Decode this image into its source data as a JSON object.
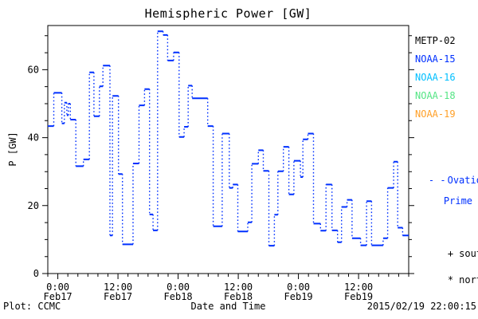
{
  "header": {
    "title": "Hemispheric Power [GW]"
  },
  "y_axis": {
    "label": "P [GW]"
  },
  "footer": {
    "plot_credit": "Plot: CCMC",
    "xaxis_title": "Date and Time",
    "timestamp": "2015/02/19 22:00:15"
  },
  "legend": {
    "satellites": [
      {
        "label": "METP-02",
        "color": "#000000"
      },
      {
        "label": "NOAA-15",
        "color": "#0030ff"
      },
      {
        "label": "NOAA-16",
        "color": "#00bfff"
      },
      {
        "label": "NOAA-18",
        "color": "#55e585"
      },
      {
        "label": "NOAA-19",
        "color": "#ffa028"
      }
    ],
    "model": {
      "marker": "- -",
      "label_line1": "Ovation",
      "label_line2": "Prime HPI",
      "color": "#0030ff"
    },
    "hemisphere_markers": [
      {
        "symbol": "+",
        "label": "south"
      },
      {
        "symbol": "*",
        "label": "north"
      }
    ]
  },
  "chart_data": {
    "type": "line",
    "style": "step",
    "title": "Hemispheric Power [GW]",
    "xlabel": "Date and Time",
    "ylabel": "P [GW]",
    "ylim": [
      0,
      73
    ],
    "y_major_ticks": [
      0,
      20,
      40,
      60
    ],
    "y_minor_step": 5,
    "x_range_hours": 72,
    "x_start": "Feb16 22:00",
    "x_end": "Feb19 22:00",
    "x_minor_step_hours": 2,
    "grid": "off",
    "tick_style": "outward",
    "legend_position": "right",
    "x_major_ticks": [
      {
        "t": 2,
        "time": "0:00",
        "date": "Feb17"
      },
      {
        "t": 14,
        "time": "12:00",
        "date": "Feb17"
      },
      {
        "t": 26,
        "time": "0:00",
        "date": "Feb18"
      },
      {
        "t": 38,
        "time": "12:00",
        "date": "Feb18"
      },
      {
        "t": 50,
        "time": "0:00",
        "date": "Feb19"
      },
      {
        "t": 62,
        "time": "12:00",
        "date": "Feb19"
      }
    ],
    "series": [
      {
        "name": "Ovation Prime HPI",
        "color": "#0030ff",
        "steps_t_hours_from_start_vs_GW": [
          [
            0,
            43.4
          ],
          [
            1.2,
            53.2
          ],
          [
            2.8,
            44.2
          ],
          [
            3.3,
            50.3
          ],
          [
            3.8,
            46.6
          ],
          [
            4.1,
            50.0
          ],
          [
            4.5,
            45.3
          ],
          [
            5.6,
            31.6
          ],
          [
            7.1,
            33.6
          ],
          [
            8.3,
            59.2
          ],
          [
            9.2,
            46.3
          ],
          [
            10.3,
            55.1
          ],
          [
            11.0,
            61.2
          ],
          [
            12.4,
            11.2
          ],
          [
            12.9,
            52.3
          ],
          [
            14.1,
            29.3
          ],
          [
            14.9,
            8.6
          ],
          [
            17.0,
            32.4
          ],
          [
            18.2,
            49.5
          ],
          [
            19.3,
            54.3
          ],
          [
            20.3,
            17.4
          ],
          [
            21.0,
            12.7
          ],
          [
            21.9,
            71.3
          ],
          [
            23.0,
            70.2
          ],
          [
            23.9,
            62.7
          ],
          [
            25.1,
            65.1
          ],
          [
            26.2,
            40.2
          ],
          [
            27.2,
            43.2
          ],
          [
            28.0,
            55.3
          ],
          [
            28.8,
            51.6
          ],
          [
            31.9,
            43.4
          ],
          [
            33.0,
            13.9
          ],
          [
            34.8,
            41.2
          ],
          [
            36.2,
            25.2
          ],
          [
            36.9,
            26.2
          ],
          [
            37.9,
            12.4
          ],
          [
            39.9,
            15.1
          ],
          [
            40.7,
            32.3
          ],
          [
            42.0,
            36.3
          ],
          [
            43.0,
            30.2
          ],
          [
            44.1,
            8.2
          ],
          [
            45.2,
            17.3
          ],
          [
            45.9,
            30.1
          ],
          [
            47.0,
            37.3
          ],
          [
            48.1,
            23.3
          ],
          [
            49.1,
            33.2
          ],
          [
            50.4,
            28.4
          ],
          [
            50.9,
            39.5
          ],
          [
            51.9,
            41.2
          ],
          [
            53.0,
            14.7
          ],
          [
            54.4,
            12.6
          ],
          [
            55.5,
            26.2
          ],
          [
            56.7,
            12.7
          ],
          [
            57.8,
            9.2
          ],
          [
            58.6,
            19.6
          ],
          [
            59.7,
            21.7
          ],
          [
            60.7,
            10.4
          ],
          [
            62.4,
            8.3
          ],
          [
            63.6,
            21.3
          ],
          [
            64.6,
            8.3
          ],
          [
            66.9,
            10.4
          ],
          [
            67.8,
            25.2
          ],
          [
            69.0,
            32.9
          ],
          [
            69.8,
            13.5
          ],
          [
            70.8,
            11.2
          ]
        ]
      }
    ]
  }
}
